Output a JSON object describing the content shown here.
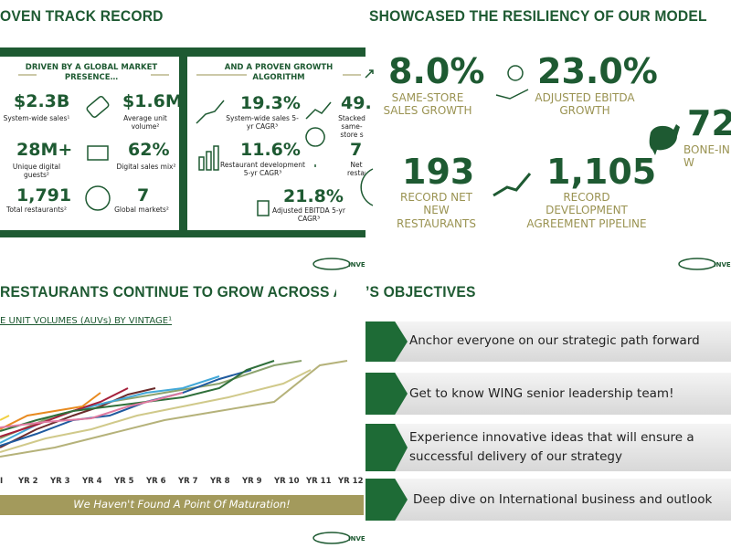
{
  "top_left": {
    "title": "OVEN TRACK RECORD",
    "left_heading": "DRIVEN BY A GLOBAL MARKET PRESENCE…",
    "left_stats": [
      {
        "value": "$2.3B",
        "label": "System-wide sales¹"
      },
      {
        "value": "$1.6M",
        "label": "Average unit volume²"
      },
      {
        "value": "28M+",
        "label": "Unique digital guests²"
      },
      {
        "value": "62%",
        "label": "Digital sales mix²"
      },
      {
        "value": "1,791",
        "label": "Total restaurants²"
      },
      {
        "value": "7",
        "label": "Global markets²"
      }
    ],
    "right_heading": "AND A PROVEN GROWTH ALGORITHM",
    "right_stats": [
      {
        "value": "19.3%",
        "label": "System-wide sales 5-yr CAGR³"
      },
      {
        "value": "49.",
        "label": "Stacked same-store s"
      },
      {
        "value": "11.6%",
        "label": "Restaurant development 5-yr CAGR³"
      },
      {
        "value": "7",
        "label": "Net restau"
      },
      {
        "value": "21.8%",
        "label": "Adjusted EBITDA 5-yr CAGR³"
      }
    ],
    "logo": "INVEST"
  },
  "top_right": {
    "title": "SHOWCASED THE RESILIENCY OF OUR MODEL",
    "stats": [
      {
        "value": "8.0%",
        "label": "SAME-STORE SALES GROWTH"
      },
      {
        "value": "23.0%",
        "label": "ADJUSTED EBITDA GROWTH"
      },
      {
        "value": "72",
        "label": "BONE-IN W INFLATI"
      },
      {
        "value": "193",
        "label": "RECORD NET NEW RESTAURANTS"
      },
      {
        "value": "1,105",
        "label": "RECORD DEVELOPMENT AGREEMENT PIPELINE"
      }
    ],
    "logo": "INVEST"
  },
  "bottom_left": {
    "title": "RESTAURANTS CONTINUE TO GROW ACROSS ALL VINTA",
    "subtitle": "E UNIT VOLUMES (AUVs) BY VINTAGE¹",
    "x_labels": [
      "I",
      "YR 2",
      "YR 3",
      "YR 4",
      "YR 5",
      "YR 6",
      "YR 7",
      "YR 8",
      "YR 9",
      "YR 10",
      "YR 11",
      "YR 12"
    ],
    "banner": "We Haven't Found A Point Of Maturation!",
    "logo": "INVEST"
  },
  "bottom_right": {
    "title": "’S OBJECTIVES",
    "items": [
      "Anchor everyone on our strategic path forward",
      "Get to know WING senior leadership team!",
      "Experience innovative ideas that will ensure a successful delivery of our strategy",
      "Deep dive on International business and outlook"
    ]
  }
}
